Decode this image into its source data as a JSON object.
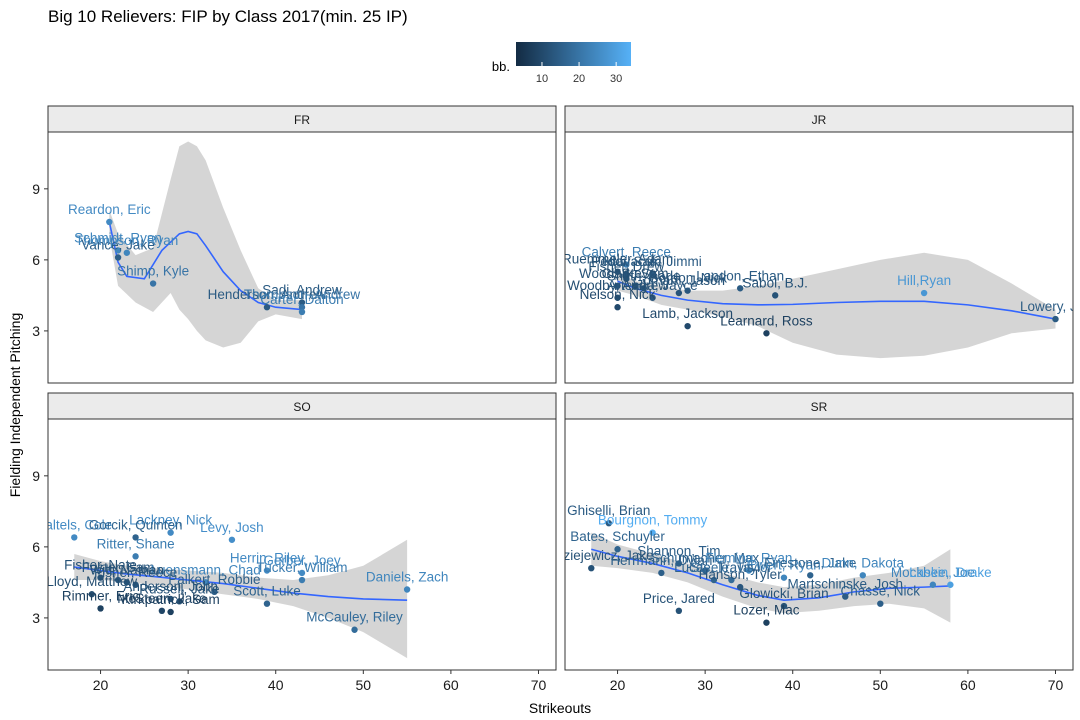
{
  "chart_data": {
    "type": "scatter",
    "title": "Big 10 Relievers: FIP by Class 2017(min. 25 IP)",
    "xlabel": "Strikeouts",
    "ylabel": "Fielding Independent Pitching",
    "xlim": [
      14,
      72
    ],
    "ylim": [
      0.8,
      11.4
    ],
    "x_ticks": [
      20,
      30,
      40,
      50,
      60,
      70
    ],
    "y_ticks": [
      3,
      6,
      9
    ],
    "legend": {
      "title": "bb.",
      "position": "top",
      "ticks": [
        10,
        20,
        30
      ],
      "min": 3,
      "max": 34,
      "color_low": "#132B43",
      "color_high": "#56B1F7"
    },
    "smooth_color": "#3366FF",
    "band_color": "#D3D3D3",
    "grid": false,
    "panels": [
      {
        "label": "FR",
        "points": [
          {
            "name": "Reardon, Eric",
            "x": 21,
            "y": 7.6,
            "bb": 25
          },
          {
            "name": "Schmidt, Ryan",
            "x": 22,
            "y": 6.4,
            "bb": 24
          },
          {
            "name": "Vance, Jake",
            "x": 22,
            "y": 6.1,
            "bb": 15
          },
          {
            "name": "Thompson, Ryan",
            "x": 23,
            "y": 6.3,
            "bb": 24
          },
          {
            "name": "Shimp, Kyle",
            "x": 26,
            "y": 5.0,
            "bb": 20
          },
          {
            "name": "Henderson, Andrew",
            "x": 39,
            "y": 4.0,
            "bb": 14
          },
          {
            "name": "Sadi, Andrew",
            "x": 43,
            "y": 4.2,
            "bb": 14
          },
          {
            "name": "Thompson, Andrew",
            "x": 43,
            "y": 4.0,
            "bb": 20
          },
          {
            "name": "Carter, Dalton",
            "x": 43,
            "y": 3.8,
            "bb": 22
          }
        ],
        "smooth": [
          [
            21,
            7.6
          ],
          [
            22,
            5.9
          ],
          [
            23,
            5.3
          ],
          [
            25,
            5.2
          ],
          [
            27,
            6.4
          ],
          [
            29,
            7.1
          ],
          [
            30,
            7.2
          ],
          [
            31,
            7.1
          ],
          [
            32,
            6.6
          ],
          [
            34,
            5.5
          ],
          [
            36,
            4.7
          ],
          [
            38,
            4.2
          ],
          [
            40,
            4.0
          ],
          [
            43,
            3.9
          ]
        ],
        "band_upper": [
          [
            21,
            8.1
          ],
          [
            22,
            7.1
          ],
          [
            24,
            6.2
          ],
          [
            26,
            6.5
          ],
          [
            28,
            9.4
          ],
          [
            29,
            10.8
          ],
          [
            30,
            11.0
          ],
          [
            31,
            10.8
          ],
          [
            32,
            10.2
          ],
          [
            34,
            8.2
          ],
          [
            36,
            6.4
          ],
          [
            38,
            4.8
          ],
          [
            40,
            4.3
          ],
          [
            43,
            4.3
          ]
        ],
        "band_lower": [
          [
            21,
            7.0
          ],
          [
            22,
            4.9
          ],
          [
            24,
            4.2
          ],
          [
            26,
            3.8
          ],
          [
            28,
            4.6
          ],
          [
            29,
            3.9
          ],
          [
            30,
            3.5
          ],
          [
            31,
            3.0
          ],
          [
            32,
            2.6
          ],
          [
            34,
            2.3
          ],
          [
            36,
            2.5
          ],
          [
            38,
            3.4
          ],
          [
            40,
            3.7
          ],
          [
            43,
            3.5
          ]
        ]
      },
      {
        "label": "JR",
        "points": [
          {
            "name": "Calvert, Reece",
            "x": 21,
            "y": 5.8,
            "bb": 22
          },
          {
            "name": "Ruemmeler, Adam",
            "x": 20,
            "y": 5.5,
            "bb": 12
          },
          {
            "name": "Peddi, Sam",
            "x": 21,
            "y": 5.4,
            "bb": 13
          },
          {
            "name": "Fisher, Drew",
            "x": 21,
            "y": 5.2,
            "bb": 12
          },
          {
            "name": "Hlavacek, Jimmi",
            "x": 24,
            "y": 5.4,
            "bb": 14
          },
          {
            "name": "Wood, Steve",
            "x": 20,
            "y": 4.9,
            "bb": 12
          },
          {
            "name": "Clark, Sam",
            "x": 22,
            "y": 4.9,
            "bb": 11
          },
          {
            "name": "Smith, Kade",
            "x": 23,
            "y": 4.8,
            "bb": 12
          },
          {
            "name": "Gordon, Nick",
            "x": 28,
            "y": 4.7,
            "bb": 13
          },
          {
            "name": "Gorham, Jason",
            "x": 27,
            "y": 4.6,
            "bb": 12
          },
          {
            "name": "Landon, Ethan",
            "x": 34,
            "y": 4.8,
            "bb": 14
          },
          {
            "name": "Sabol, B.J.",
            "x": 38,
            "y": 4.5,
            "bb": 12
          },
          {
            "name": "Woodby, Andrew",
            "x": 20,
            "y": 4.4,
            "bb": 11
          },
          {
            "name": "Arteaga, Jayce",
            "x": 24,
            "y": 4.4,
            "bb": 13
          },
          {
            "name": "Nelson, Nick",
            "x": 20,
            "y": 4.0,
            "bb": 10
          },
          {
            "name": "Lamb, Jackson",
            "x": 28,
            "y": 3.2,
            "bb": 10
          },
          {
            "name": "Learnard, Ross",
            "x": 37,
            "y": 2.9,
            "bb": 8
          },
          {
            "name": "Hill,Ryan",
            "x": 55,
            "y": 4.6,
            "bb": 28
          },
          {
            "name": "Lowery, Jay",
            "x": 70,
            "y": 3.5,
            "bb": 14
          }
        ],
        "smooth": [
          [
            20,
            5.1
          ],
          [
            22,
            4.8
          ],
          [
            25,
            4.5
          ],
          [
            28,
            4.3
          ],
          [
            32,
            4.15
          ],
          [
            36,
            4.1
          ],
          [
            40,
            4.12
          ],
          [
            45,
            4.2
          ],
          [
            50,
            4.25
          ],
          [
            55,
            4.25
          ],
          [
            60,
            4.1
          ],
          [
            65,
            3.85
          ],
          [
            70,
            3.5
          ]
        ],
        "band_upper": [
          [
            20,
            5.5
          ],
          [
            22,
            5.1
          ],
          [
            25,
            4.9
          ],
          [
            28,
            4.7
          ],
          [
            32,
            4.7
          ],
          [
            36,
            4.9
          ],
          [
            40,
            5.2
          ],
          [
            45,
            5.6
          ],
          [
            50,
            6.0
          ],
          [
            55,
            6.3
          ],
          [
            60,
            6.0
          ],
          [
            65,
            5.0
          ],
          [
            70,
            3.9
          ]
        ],
        "band_lower": [
          [
            20,
            4.7
          ],
          [
            22,
            4.5
          ],
          [
            25,
            4.1
          ],
          [
            28,
            3.9
          ],
          [
            32,
            3.6
          ],
          [
            36,
            3.2
          ],
          [
            40,
            2.5
          ],
          [
            45,
            2.0
          ],
          [
            50,
            1.85
          ],
          [
            55,
            1.95
          ],
          [
            60,
            2.3
          ],
          [
            65,
            2.9
          ],
          [
            70,
            3.1
          ]
        ]
      },
      {
        "label": "SO",
        "points": [
          {
            "name": "Baltels, Cole",
            "x": 17,
            "y": 6.4,
            "bb": 25
          },
          {
            "name": "Lackney, Nick",
            "x": 28,
            "y": 6.6,
            "bb": 25
          },
          {
            "name": "Gorcik, Quinten",
            "x": 24,
            "y": 6.4,
            "bb": 16
          },
          {
            "name": "Levy, Josh",
            "x": 35,
            "y": 6.3,
            "bb": 26
          },
          {
            "name": "Ritter, Shane",
            "x": 24,
            "y": 5.6,
            "bb": 22
          },
          {
            "name": "Herrin, Riley",
            "x": 39,
            "y": 5.0,
            "bb": 25
          },
          {
            "name": "Gerber, Joey",
            "x": 43,
            "y": 4.9,
            "bb": 25
          },
          {
            "name": "Fisher, Nate",
            "x": 20,
            "y": 4.7,
            "bb": 12
          },
          {
            "name": "Foster, Sam",
            "x": 22,
            "y": 4.6,
            "bb": 13
          },
          {
            "name": "Luensmann, Chad",
            "x": 32,
            "y": 4.5,
            "bb": 24
          },
          {
            "name": "Tucker, William",
            "x": 43,
            "y": 4.6,
            "bb": 22
          },
          {
            "name": "Daniels, Zach",
            "x": 55,
            "y": 4.2,
            "bb": 24
          },
          {
            "name": "Witt, Nathan",
            "x": 23,
            "y": 4.5,
            "bb": 12
          },
          {
            "name": "Fisher, Reece",
            "x": 24,
            "y": 4.4,
            "bb": 13
          },
          {
            "name": "Palkert, Robbie",
            "x": 33,
            "y": 4.1,
            "bb": 15
          },
          {
            "name": "Lloyd, Matthew",
            "x": 19,
            "y": 4.0,
            "bb": 11
          },
          {
            "name": "Anderson, John",
            "x": 28,
            "y": 3.8,
            "bb": 12
          },
          {
            "name": "Russell, Jake",
            "x": 29,
            "y": 3.7,
            "bb": 12
          },
          {
            "name": "Rimmer, Eric",
            "x": 20,
            "y": 3.4,
            "bb": 8
          },
          {
            "name": "McSteen, Jake",
            "x": 27,
            "y": 3.3,
            "bb": 9
          },
          {
            "name": "Kirkpatrick, Sam",
            "x": 28,
            "y": 3.25,
            "bb": 8
          },
          {
            "name": "Scott, Luke",
            "x": 39,
            "y": 3.6,
            "bb": 16
          },
          {
            "name": "McCauley, Riley",
            "x": 49,
            "y": 2.5,
            "bb": 18
          }
        ],
        "smooth": [
          [
            17,
            5.15
          ],
          [
            20,
            5.0
          ],
          [
            23,
            4.85
          ],
          [
            26,
            4.75
          ],
          [
            30,
            4.6
          ],
          [
            34,
            4.45
          ],
          [
            38,
            4.25
          ],
          [
            42,
            4.05
          ],
          [
            46,
            3.9
          ],
          [
            50,
            3.8
          ],
          [
            55,
            3.75
          ]
        ],
        "band_upper": [
          [
            17,
            5.7
          ],
          [
            20,
            5.4
          ],
          [
            23,
            5.2
          ],
          [
            26,
            5.1
          ],
          [
            30,
            5.0
          ],
          [
            34,
            4.9
          ],
          [
            38,
            4.7
          ],
          [
            42,
            4.6
          ],
          [
            46,
            4.8
          ],
          [
            50,
            5.2
          ],
          [
            55,
            6.3
          ]
        ],
        "band_lower": [
          [
            17,
            4.6
          ],
          [
            20,
            4.6
          ],
          [
            23,
            4.5
          ],
          [
            26,
            4.4
          ],
          [
            30,
            4.2
          ],
          [
            34,
            4.0
          ],
          [
            38,
            3.8
          ],
          [
            42,
            3.5
          ],
          [
            46,
            3.0
          ],
          [
            50,
            2.4
          ],
          [
            55,
            1.3
          ]
        ]
      },
      {
        "label": "SR",
        "points": [
          {
            "name": "Ghiselli, Brian",
            "x": 19,
            "y": 7.0,
            "bb": 14
          },
          {
            "name": "Bourgnon, Tommy",
            "x": 24,
            "y": 6.6,
            "bb": 33
          },
          {
            "name": "Bates, Schuyler",
            "x": 20,
            "y": 5.9,
            "bb": 16
          },
          {
            "name": "Shannon, Tim",
            "x": 27,
            "y": 5.3,
            "bb": 15
          },
          {
            "name": "Kolodziejewicz, Jake",
            "x": 17,
            "y": 5.1,
            "bb": 12
          },
          {
            "name": "Schumacher, Max",
            "x": 30,
            "y": 5.0,
            "bb": 16
          },
          {
            "name": "Herrmann, Dylan",
            "x": 25,
            "y": 4.9,
            "bb": 15
          },
          {
            "name": "Fleming, Ryan",
            "x": 35,
            "y": 5.0,
            "bb": 24
          },
          {
            "name": "Ewert, Ryan",
            "x": 39,
            "y": 4.7,
            "bb": 24
          },
          {
            "name": "Firestone, Jake",
            "x": 42,
            "y": 4.8,
            "bb": 16
          },
          {
            "name": "Dunn, Dakota",
            "x": 48,
            "y": 4.8,
            "bb": 24
          },
          {
            "name": "Lucas, Travis",
            "x": 31,
            "y": 4.6,
            "bb": 16
          },
          {
            "name": "Steele, Taylor",
            "x": 33,
            "y": 4.6,
            "bb": 18
          },
          {
            "name": "Mockbee, Joe",
            "x": 56,
            "y": 4.4,
            "bb": 24
          },
          {
            "name": "Laskin, Drake",
            "x": 58,
            "y": 4.4,
            "bb": 30
          },
          {
            "name": "Hanson, Tyler",
            "x": 34,
            "y": 4.3,
            "bb": 13
          },
          {
            "name": "Martschinske, Josh",
            "x": 46,
            "y": 3.9,
            "bb": 14
          },
          {
            "name": "Chasse, Nick",
            "x": 50,
            "y": 3.6,
            "bb": 15
          },
          {
            "name": "Price, Jared",
            "x": 27,
            "y": 3.3,
            "bb": 12
          },
          {
            "name": "Glowicki, Brian",
            "x": 39,
            "y": 3.5,
            "bb": 12
          },
          {
            "name": "Lozer, Mac",
            "x": 37,
            "y": 2.8,
            "bb": 8
          }
        ],
        "smooth": [
          [
            17,
            5.9
          ],
          [
            20,
            5.6
          ],
          [
            24,
            5.3
          ],
          [
            28,
            4.9
          ],
          [
            32,
            4.4
          ],
          [
            36,
            3.95
          ],
          [
            39,
            3.75
          ],
          [
            43,
            3.85
          ],
          [
            47,
            4.1
          ],
          [
            51,
            4.25
          ],
          [
            55,
            4.3
          ],
          [
            58,
            4.35
          ]
        ],
        "band_upper": [
          [
            17,
            6.6
          ],
          [
            20,
            6.1
          ],
          [
            24,
            5.7
          ],
          [
            28,
            5.3
          ],
          [
            32,
            4.9
          ],
          [
            36,
            4.5
          ],
          [
            39,
            4.3
          ],
          [
            43,
            4.4
          ],
          [
            47,
            4.7
          ],
          [
            51,
            4.9
          ],
          [
            55,
            5.2
          ],
          [
            58,
            5.9
          ]
        ],
        "band_lower": [
          [
            17,
            5.2
          ],
          [
            20,
            5.1
          ],
          [
            24,
            4.9
          ],
          [
            28,
            4.5
          ],
          [
            32,
            3.9
          ],
          [
            36,
            3.4
          ],
          [
            39,
            3.2
          ],
          [
            43,
            3.3
          ],
          [
            47,
            3.5
          ],
          [
            51,
            3.6
          ],
          [
            55,
            3.4
          ],
          [
            58,
            2.8
          ]
        ]
      }
    ]
  }
}
